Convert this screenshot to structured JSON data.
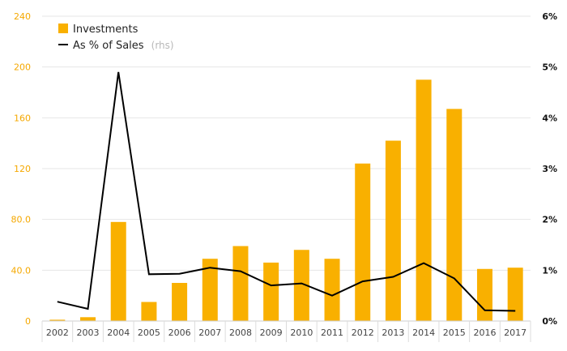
{
  "chart_data": {
    "type": "bar",
    "categories": [
      "2002",
      "2003",
      "2004",
      "2005",
      "2006",
      "2007",
      "2008",
      "2009",
      "2010",
      "2011",
      "2012",
      "2013",
      "2014",
      "2015",
      "2016",
      "2017"
    ],
    "series": [
      {
        "name": "Investments",
        "type": "bar",
        "axis": "left",
        "color": "#f9b000",
        "values": [
          1,
          3,
          78,
          15,
          30,
          49,
          59,
          46,
          56,
          49,
          124,
          142,
          190,
          167,
          41,
          42
        ]
      },
      {
        "name": "As % of Sales",
        "type": "line",
        "axis": "right",
        "color": "#000000",
        "values": [
          0.38,
          0.24,
          4.9,
          0.92,
          0.93,
          1.05,
          0.98,
          0.7,
          0.74,
          0.5,
          0.78,
          0.87,
          1.14,
          0.84,
          0.21,
          0.2
        ]
      }
    ],
    "legend": {
      "position": "top-left",
      "entries": [
        {
          "label": "Investments",
          "note": ""
        },
        {
          "label": "As % of Sales",
          "note": "(rhs)"
        }
      ]
    },
    "y_left": {
      "ylim": [
        0,
        240
      ],
      "ticks": [
        0,
        40,
        80,
        120,
        160,
        200,
        240
      ],
      "tick_labels": [
        "0",
        "40.0",
        "80.0",
        "120",
        "160",
        "200",
        "240"
      ],
      "color": "#f5a800"
    },
    "y_right": {
      "ylim": [
        0,
        6
      ],
      "ticks": [
        0,
        1,
        2,
        3,
        4,
        5,
        6
      ],
      "tick_labels": [
        "0%",
        "1%",
        "2%",
        "3%",
        "4%",
        "5%",
        "6%"
      ],
      "color": "#111111"
    },
    "grid": true,
    "title": "",
    "xlabel": "",
    "ylabel": ""
  }
}
